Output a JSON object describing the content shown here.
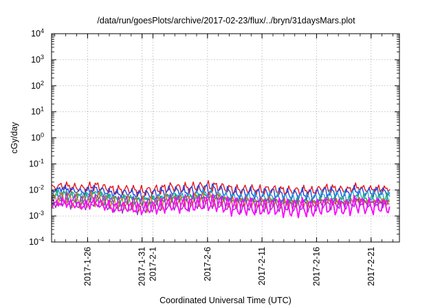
{
  "chart_data": {
    "type": "line",
    "title": "/data/run/goesPlots/archive/2017-02-23/flux/../bryn/31daysMars.plot",
    "xlabel": "Coordinated Universal Time (UTC)",
    "ylabel": "cGy/day",
    "yscale": "log",
    "ylim_exponents": [
      -4,
      4
    ],
    "y_ticks": [
      {
        "base": "10",
        "exp": "4",
        "value": 10000
      },
      {
        "base": "10",
        "exp": "3",
        "value": 1000
      },
      {
        "base": "10",
        "exp": "2",
        "value": 100
      },
      {
        "base": "10",
        "exp": "1",
        "value": 10
      },
      {
        "base": "10",
        "exp": "0",
        "value": 1
      },
      {
        "base": "10",
        "exp": "-1",
        "value": 0.1
      },
      {
        "base": "10",
        "exp": "-2",
        "value": 0.01
      },
      {
        "base": "10",
        "exp": "-3",
        "value": 0.001
      },
      {
        "base": "10",
        "exp": "-4",
        "value": 0.0001
      }
    ],
    "xlim_days": [
      -8.3,
      23.6
    ],
    "x_ticks": [
      {
        "label": "2017-1-26",
        "day": -5
      },
      {
        "label": "2017-1-31",
        "day": 0
      },
      {
        "label": "2017-2-1",
        "day": 1
      },
      {
        "label": "2017-2-6",
        "day": 6
      },
      {
        "label": "2017-2-11",
        "day": 11
      },
      {
        "label": "2017-2-16",
        "day": 16
      },
      {
        "label": "2017-2-21",
        "day": 21
      }
    ],
    "grid": true,
    "series": [
      {
        "color": "#e8141a",
        "values": [
          0.012,
          0.0145,
          0.0125,
          0.0115,
          0.0145,
          0.0115,
          0.0095,
          0.0105,
          0.009,
          0.0095,
          0.0105,
          0.0125,
          0.0115,
          0.0125,
          0.014,
          0.0135,
          0.0115,
          0.0095,
          0.0105,
          0.0095,
          0.0105,
          0.0095,
          0.009,
          0.0095,
          0.009,
          0.0115,
          0.011,
          0.0095,
          0.0125,
          0.0105,
          0.011,
          0.0105
        ]
      },
      {
        "color": "#1f45e6",
        "values": [
          0.009,
          0.0115,
          0.0095,
          0.0085,
          0.0115,
          0.0085,
          0.007,
          0.008,
          0.0065,
          0.007,
          0.008,
          0.0095,
          0.0085,
          0.0095,
          0.011,
          0.0105,
          0.0085,
          0.007,
          0.008,
          0.007,
          0.008,
          0.007,
          0.0065,
          0.007,
          0.0065,
          0.0085,
          0.008,
          0.007,
          0.0095,
          0.008,
          0.0085,
          0.008
        ]
      },
      {
        "color": "#2aa9d6",
        "values": [
          0.0062,
          0.0078,
          0.0065,
          0.0058,
          0.0078,
          0.0058,
          0.0048,
          0.0055,
          0.0045,
          0.0048,
          0.0055,
          0.0065,
          0.0058,
          0.0065,
          0.0075,
          0.0072,
          0.0058,
          0.0048,
          0.0055,
          0.0048,
          0.0055,
          0.0048,
          0.0045,
          0.0048,
          0.0045,
          0.0058,
          0.0055,
          0.0048,
          0.0065,
          0.0055,
          0.0058,
          0.0055
        ]
      },
      {
        "color": "#1aa86a",
        "values": [
          0.0048,
          0.006,
          0.005,
          0.0045,
          0.006,
          0.0045,
          0.0037,
          0.0042,
          0.0035,
          0.0037,
          0.0042,
          0.005,
          0.0045,
          0.005,
          0.0058,
          0.0055,
          0.0045,
          0.0037,
          0.0042,
          0.0037,
          0.0042,
          0.0037,
          0.0035,
          0.0037,
          0.0035,
          0.0045,
          0.0042,
          0.0037,
          0.005,
          0.0042,
          0.0045,
          0.0042
        ]
      },
      {
        "color": "#d96e1c",
        "values": [
          0.0038,
          0.0048,
          0.004,
          0.0036,
          0.0048,
          0.0036,
          0.003,
          0.0034,
          0.0028,
          0.003,
          0.0034,
          0.004,
          0.0036,
          0.004,
          0.0046,
          0.0044,
          0.0036,
          0.003,
          0.0034,
          0.003,
          0.0034,
          0.003,
          0.0028,
          0.003,
          0.0028,
          0.0036,
          0.0034,
          0.003,
          0.004,
          0.0034,
          0.0036,
          0.0034
        ]
      },
      {
        "color": "#9a2fd0",
        "values": [
          0.0033,
          0.0042,
          0.0035,
          0.0031,
          0.0042,
          0.0031,
          0.0026,
          0.0029,
          0.0024,
          0.0026,
          0.0029,
          0.0035,
          0.0031,
          0.0035,
          0.004,
          0.0038,
          0.0031,
          0.0026,
          0.0029,
          0.0026,
          0.0029,
          0.0026,
          0.0024,
          0.0026,
          0.0024,
          0.0031,
          0.0029,
          0.0026,
          0.0035,
          0.0029,
          0.0031,
          0.0029
        ]
      },
      {
        "color": "#ff00ff",
        "values": [
          0.0027,
          0.0034,
          0.0028,
          0.0025,
          0.0034,
          0.0025,
          0.0021,
          0.0023,
          0.0019,
          0.0021,
          0.0023,
          0.0028,
          0.0025,
          0.0028,
          0.0032,
          0.0031,
          0.0025,
          0.0021,
          0.0023,
          0.0021,
          0.0023,
          0.0021,
          0.0019,
          0.0021,
          0.0019,
          0.0025,
          0.0023,
          0.0021,
          0.0028,
          0.0023,
          0.0025,
          0.0023
        ]
      }
    ]
  }
}
